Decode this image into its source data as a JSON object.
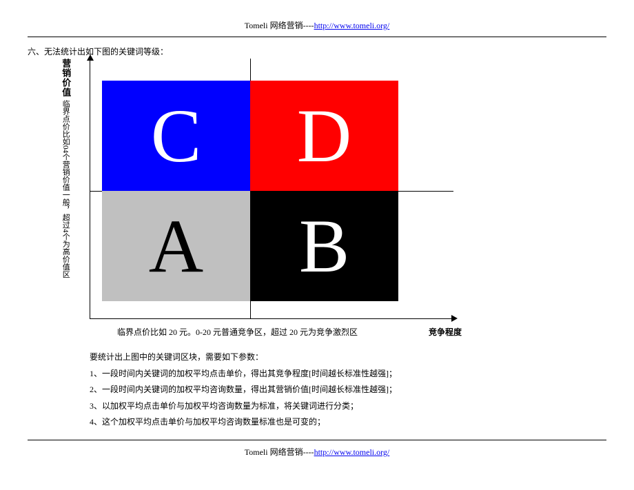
{
  "header": {
    "prefix": "Tomeli 网络营销----",
    "link_text": "http://www.tomeli.org/"
  },
  "section_title": "六、无法统计出如下图的关键词等级：",
  "chart": {
    "y_title": "营销价值",
    "y_sublabel": "临界点价比如04个营销价值一般，超过4个为高价值区",
    "x_sublabel": "临界点价比如 20 元。0-20 元普通竞争区，超过 20 元为竞争激烈区",
    "x_title": "竞争程度",
    "quadrants": {
      "top_left": {
        "letter": "C",
        "bg": "#0000ff",
        "fg": "#ffffff"
      },
      "top_right": {
        "letter": "D",
        "bg": "#ff0000",
        "fg": "#ffffff"
      },
      "bot_left": {
        "letter": "A",
        "bg": "#c0c0c0",
        "fg": "#000000"
      },
      "bot_right": {
        "letter": "B",
        "bg": "#000000",
        "fg": "#ffffff"
      }
    }
  },
  "notes": {
    "intro": "要统计出上图中的关键词区块，需要如下参数：",
    "items": [
      "1、一段时间内关键词的加权平均点击单价，得出其竞争程度[时间越长标准性越强]；",
      "2、一段时间内关键词的加权平均咨询数量，得出其营销价值[时间越长标准性越强]；",
      "3、以加权平均点击单价与加权平均咨询数量为标准，将关键词进行分类；",
      "4、这个加权平均点击单价与加权平均咨询数量标准也是可变的；"
    ]
  },
  "footer": {
    "prefix": "Tomeli 网络营销----",
    "link_text": "http://www.tomeli.org/"
  }
}
